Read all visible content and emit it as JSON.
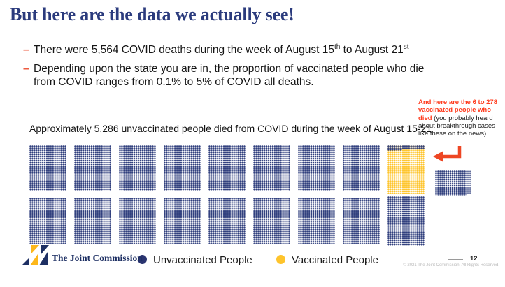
{
  "slide": {
    "title": "But here are the data we actually see!",
    "bullets": [
      {
        "marker": "–",
        "segments": [
          {
            "text": "There were 5,564 COVID deaths during the week of August 15"
          },
          {
            "text": "th"
          },
          {
            "text": " to August 21"
          },
          {
            "text": "st"
          }
        ]
      },
      {
        "marker": "–",
        "text": "Depending upon the state you are in, the proportion of vaccinated people who die from COVID ranges from 0.1% to 5% of COVID all deaths."
      }
    ]
  },
  "annotation": {
    "red_text": "And here are the 6 to 278 vaccinated people who died",
    "black_text": " (you probably heard about breakthrough cases like these on the news)"
  },
  "chart_data": {
    "type": "waffle",
    "title": "Approximately 5,286 unvaccinated people died from COVID during the week of August 15-21",
    "series": [
      {
        "name": "Unvaccinated People",
        "value": 5286,
        "color": "#303e7c"
      },
      {
        "name": "Vaccinated People",
        "value": 278,
        "color": "#fec52d"
      }
    ],
    "total_deaths": 5564,
    "vaccinated_deaths_range": "6 to 278",
    "legend_position": "bottom",
    "layout_hint": {
      "top_row_grids": 9,
      "bottom_row_grids": 9,
      "extra_partial_grid": 1,
      "yellow_grid_position": "top row, rightmost"
    }
  },
  "legend": {
    "unvaccinated_label": "Unvaccinated People",
    "vaccinated_label": "Vaccinated People",
    "unvaccinated_color": "#2a3470",
    "vaccinated_color": "#fec42c"
  },
  "footer": {
    "brand": "The Joint Commission",
    "page_number": "12",
    "copyright": "© 2021 The Joint Commission. All Rights Reserved."
  },
  "colors": {
    "title_navy": "#2b3b7d",
    "bullet_dash": "#ed5b40",
    "annotation_red": "#ff3c1e",
    "arrow_orange": "#ee4623",
    "waffle_blue": "#31407e",
    "waffle_yellow": "#fec52d"
  }
}
